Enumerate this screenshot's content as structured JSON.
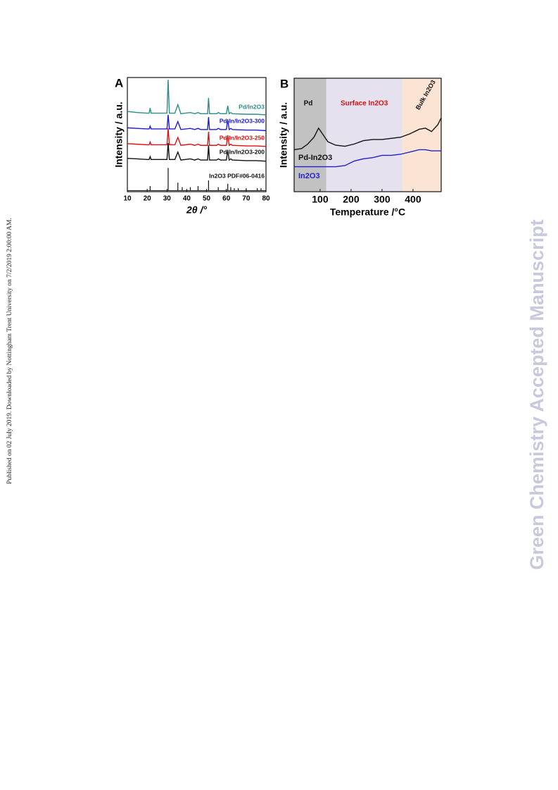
{
  "page": {
    "side_note": "Published on 02 July 2019. Downloaded by Nottingham Trent University on 7/2/2019 2:00:00 AM.",
    "watermark": "Green Chemistry Accepted Manuscript"
  },
  "chart_data": [
    {
      "type": "line",
      "panel": "A",
      "ylabel": "Intensity / a.u.",
      "xlabel": "2θ /°",
      "xlim": [
        10,
        80
      ],
      "xticks": [
        10,
        20,
        30,
        40,
        50,
        60,
        70,
        80
      ],
      "ylim": [
        -1,
        100
      ],
      "x": [
        10,
        15,
        20,
        21,
        21.5,
        22,
        25,
        30,
        30.6,
        31.2,
        34,
        35.5,
        37,
        41.8,
        44,
        45.7,
        47,
        50.5,
        51,
        51.5,
        55,
        56,
        57,
        60,
        60.7,
        61.4,
        62.2,
        63,
        70,
        75,
        80
      ],
      "series": [
        {
          "name": "Pd/In2O3",
          "color": "#2a8f86",
          "values": [
            70,
            69,
            68.5,
            68.5,
            73,
            68.5,
            68.5,
            68.5,
            98,
            68.5,
            68.5,
            76,
            68,
            69,
            68,
            69,
            68,
            68,
            82,
            68,
            68,
            69,
            68,
            68,
            75,
            68,
            69,
            68,
            67.5,
            67.5,
            67
          ]
        },
        {
          "name": "Pd-In/In2O3-300",
          "color": "#1a1adf",
          "values": [
            55.5,
            55,
            54.5,
            54.5,
            57,
            54.5,
            54.5,
            54.5,
            67,
            54.5,
            54.5,
            61,
            54,
            55,
            54,
            55,
            54,
            54,
            65,
            54,
            54,
            55,
            54,
            54,
            63,
            54,
            55,
            54,
            53.5,
            53.5,
            53
          ]
        },
        {
          "name": "Pd-In/In2O3-250",
          "color": "#e01010",
          "values": [
            41.5,
            41,
            40.5,
            40.5,
            43,
            40.5,
            40.5,
            40.5,
            55,
            40.5,
            40.5,
            47,
            40,
            41,
            40,
            41,
            40,
            40,
            52,
            40,
            40,
            41,
            40,
            40,
            49,
            40,
            41,
            40,
            39.5,
            39.5,
            39
          ]
        },
        {
          "name": "Pd-In/In2O3-200",
          "color": "#111111",
          "values": [
            28.5,
            28,
            27.5,
            27.5,
            30,
            27.5,
            27.5,
            27.5,
            42,
            27.5,
            27.5,
            34,
            27,
            28,
            27,
            28,
            27,
            27,
            40,
            27,
            27,
            28,
            27,
            27,
            36,
            27,
            28,
            27,
            26.5,
            26.5,
            26
          ]
        }
      ],
      "reference": {
        "name": "In2O3 PDF#06-0416",
        "color": "#111111",
        "positions": [
          21.5,
          30.6,
          35.5,
          37.7,
          41.8,
          45.7,
          51,
          55.9,
          60.7,
          62.2,
          64,
          66,
          70,
          75.6,
          77.5
        ],
        "heights": [
          4,
          20,
          7,
          3,
          3,
          4,
          9,
          3,
          6,
          3,
          2,
          2,
          2,
          2,
          2
        ]
      }
    },
    {
      "type": "line",
      "panel": "B",
      "ylabel": "Intensity / a.u.",
      "xlabel": "Temperature /°C",
      "xlim": [
        16,
        491
      ],
      "xticks": [
        100,
        200,
        300,
        400
      ],
      "ylim": [
        0,
        100
      ],
      "regions": [
        {
          "label": "Pd",
          "from": 16,
          "to": 120,
          "color": "#c2c2c2"
        },
        {
          "label": "Surface In2O3",
          "from": 120,
          "to": 365,
          "color": "#e5e1ef"
        },
        {
          "label": "Bulk In2O3",
          "from": 365,
          "to": 491,
          "color": "#fbe4d3"
        }
      ],
      "x": [
        16,
        40,
        60,
        80,
        95,
        110,
        125,
        150,
        180,
        210,
        240,
        270,
        300,
        330,
        360,
        390,
        420,
        440,
        460,
        480,
        491
      ],
      "series": [
        {
          "name": "Pd-In2O3",
          "color": "#111111",
          "values": [
            37,
            38,
            42,
            48,
            56,
            50,
            44,
            41,
            40,
            42,
            45,
            46,
            46,
            47,
            48,
            51,
            55,
            56,
            53,
            59,
            65
          ]
        },
        {
          "name": "In2O3",
          "color": "#2222cc",
          "values": [
            22,
            22,
            22,
            22,
            22,
            22,
            22,
            22,
            23,
            27,
            29,
            30,
            32,
            32,
            33,
            35,
            37,
            37,
            36,
            36,
            36
          ]
        }
      ]
    }
  ]
}
